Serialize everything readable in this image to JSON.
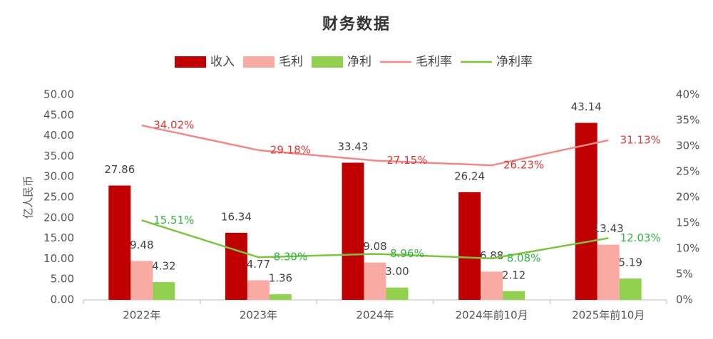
{
  "chart_data": {
    "type": "bar",
    "title": "财务数据",
    "y_label": "亿人民币",
    "categories": [
      "2022年",
      "2023年",
      "2024年",
      "2024年前10月",
      "2025年前10月"
    ],
    "series": [
      {
        "name": "收入",
        "type": "bar",
        "color": "#c00000",
        "values": [
          27.86,
          16.34,
          33.43,
          26.24,
          43.14
        ]
      },
      {
        "name": "毛利",
        "type": "bar",
        "color": "#f8aaa3",
        "values": [
          9.48,
          4.77,
          9.08,
          6.88,
          13.43
        ]
      },
      {
        "name": "净利",
        "type": "bar",
        "color": "#92d050",
        "values": [
          4.32,
          1.36,
          3.0,
          2.12,
          5.19
        ],
        "value_labels": [
          "4.32",
          "1.36",
          "3.00",
          "2.12",
          "5.19"
        ]
      },
      {
        "name": "毛利率",
        "type": "line",
        "axis": "y2",
        "color": "#f08a8a",
        "label_color": "#d83a3a",
        "values": [
          34.02,
          29.18,
          27.15,
          26.23,
          31.13
        ],
        "value_labels": [
          "34.02%",
          "29.18%",
          "27.15%",
          "26.23%",
          "31.13%"
        ]
      },
      {
        "name": "净利率",
        "type": "line",
        "axis": "y2",
        "color": "#7dc43e",
        "label_color": "#2fb344",
        "values": [
          15.51,
          8.3,
          8.96,
          8.08,
          12.03
        ],
        "value_labels": [
          "15.51%",
          "8.30%",
          "8.96%",
          "8.08%",
          "12.03%"
        ]
      }
    ],
    "ylim": [
      0,
      50
    ],
    "yticks": [
      {
        "value": 0,
        "label": "0.00"
      },
      {
        "value": 5,
        "label": "5.00"
      },
      {
        "value": 10,
        "label": "10.00"
      },
      {
        "value": 15,
        "label": "15.00"
      },
      {
        "value": 20,
        "label": "20.00"
      },
      {
        "value": 25,
        "label": "25.00"
      },
      {
        "value": 30,
        "label": "30.00"
      },
      {
        "value": 35,
        "label": "35.00"
      },
      {
        "value": 40,
        "label": "40.00"
      },
      {
        "value": 45,
        "label": "45.00"
      },
      {
        "value": 50,
        "label": "50.00"
      }
    ],
    "y2lim": [
      0,
      40
    ],
    "y2ticks": [
      {
        "value": 0,
        "label": "0%"
      },
      {
        "value": 5,
        "label": "5%"
      },
      {
        "value": 10,
        "label": "10%"
      },
      {
        "value": 15,
        "label": "15%"
      },
      {
        "value": 20,
        "label": "20%"
      },
      {
        "value": 25,
        "label": "25%"
      },
      {
        "value": 30,
        "label": "30%"
      },
      {
        "value": 35,
        "label": "35%"
      },
      {
        "value": 40,
        "label": "40%"
      }
    ],
    "grid": false,
    "legend": "top"
  }
}
